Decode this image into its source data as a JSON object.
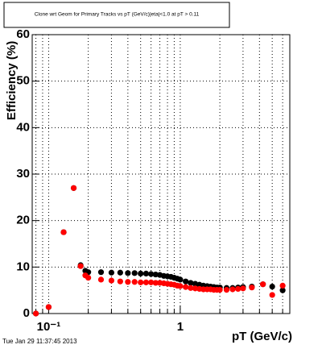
{
  "chart_data": {
    "type": "scatter",
    "title": "Clone wrt Geom for Primary Tracks vs pT (GeV/c)|eta|<1.0 at pT > 0.11",
    "x_label": "pT (GeV/c)",
    "y_label": "Efficiency (%)",
    "footer": "Tue Jan 29 11:37:45 2013",
    "x_log": true,
    "grid": true,
    "x": [
      0.08,
      0.1,
      0.13,
      0.155,
      0.175,
      0.19,
      0.2,
      0.25,
      0.3,
      0.35,
      0.4,
      0.45,
      0.5,
      0.55,
      0.6,
      0.65,
      0.7,
      0.75,
      0.8,
      0.85,
      0.9,
      0.95,
      1.0,
      1.1,
      1.2,
      1.3,
      1.4,
      1.5,
      1.6,
      1.7,
      1.8,
      1.9,
      2.0,
      2.25,
      2.5,
      2.75,
      3.0,
      3.5,
      4.25,
      5.0,
      6.0
    ],
    "series": [
      {
        "color": "#000000",
        "values": [
          0,
          1.4,
          17.5,
          27,
          10.4,
          9.2,
          8.9,
          8.9,
          8.8,
          8.8,
          8.7,
          8.7,
          8.6,
          8.6,
          8.5,
          8.4,
          8.3,
          8.1,
          8.0,
          7.9,
          7.7,
          7.5,
          7.3,
          6.9,
          6.6,
          6.4,
          6.2,
          6.0,
          5.9,
          5.8,
          5.7,
          5.6,
          5.6,
          5.5,
          5.5,
          5.6,
          5.7,
          5.8,
          6.3,
          5.8,
          5.0
        ]
      },
      {
        "color": "#ff0000",
        "values": [
          0,
          1.4,
          17.5,
          27,
          10.2,
          8.2,
          7.7,
          7.3,
          7.1,
          6.9,
          6.8,
          6.8,
          6.7,
          6.7,
          6.7,
          6.6,
          6.6,
          6.5,
          6.4,
          6.3,
          6.2,
          6.0,
          5.9,
          5.7,
          5.5,
          5.4,
          5.3,
          5.2,
          5.2,
          5.2,
          5.1,
          5.1,
          5.1,
          5.1,
          5.2,
          5.3,
          5.4,
          5.6,
          6.3,
          4.0,
          6.0
        ]
      }
    ],
    "xlim": [
      0.075,
      6.8
    ],
    "xticks": [
      {
        "value": 0.1,
        "label": "10⁻¹"
      },
      1
    ],
    "xminorticks": [
      0.08,
      0.09,
      0.2,
      0.3,
      0.4,
      0.5,
      0.6,
      0.7,
      0.8,
      0.9,
      2,
      3,
      4,
      5,
      6
    ],
    "ylim": [
      0,
      60
    ],
    "yticks": [
      0,
      10,
      20,
      30,
      40,
      50,
      60
    ]
  }
}
